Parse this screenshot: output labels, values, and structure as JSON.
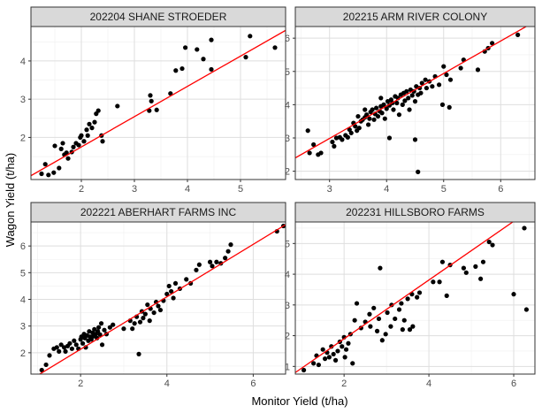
{
  "figure": {
    "xlabel": "Monitor Yield (t/ha)",
    "ylabel": "Wagon Yield (t/ha)"
  },
  "colors": {
    "panel_border": "#333333",
    "grid_major": "#dedede",
    "grid_minor": "#efefef",
    "strip_fill": "#d9d9d9",
    "point": "#000000",
    "fit_line": "#ff0000"
  },
  "chart_data": [
    {
      "type": "scatter",
      "title": "202204 SHANE STROEDER",
      "xlim": [
        1.05,
        5.85
      ],
      "ylim": [
        0.9,
        4.9
      ],
      "xticks": [
        2,
        3,
        4,
        5
      ],
      "yticks": [
        2,
        3,
        4
      ],
      "line": {
        "x": [
          1.05,
          5.85
        ],
        "y": [
          1.0,
          4.8
        ]
      },
      "points": [
        [
          1.25,
          1.05
        ],
        [
          1.32,
          1.3
        ],
        [
          1.38,
          1.02
        ],
        [
          1.48,
          1.08
        ],
        [
          1.5,
          1.78
        ],
        [
          1.58,
          1.2
        ],
        [
          1.62,
          1.7
        ],
        [
          1.65,
          1.85
        ],
        [
          1.68,
          1.55
        ],
        [
          1.72,
          1.6
        ],
        [
          1.75,
          1.45
        ],
        [
          1.82,
          1.62
        ],
        [
          1.85,
          1.75
        ],
        [
          1.9,
          1.85
        ],
        [
          1.95,
          1.8
        ],
        [
          1.98,
          2.0
        ],
        [
          2.0,
          2.05
        ],
        [
          2.05,
          1.9
        ],
        [
          2.1,
          2.2
        ],
        [
          2.12,
          2.05
        ],
        [
          2.15,
          2.35
        ],
        [
          2.2,
          2.25
        ],
        [
          2.25,
          2.4
        ],
        [
          2.28,
          2.62
        ],
        [
          2.32,
          2.7
        ],
        [
          2.38,
          2.05
        ],
        [
          2.4,
          1.9
        ],
        [
          2.68,
          2.82
        ],
        [
          3.28,
          2.7
        ],
        [
          3.3,
          3.1
        ],
        [
          3.32,
          2.95
        ],
        [
          3.42,
          2.72
        ],
        [
          3.68,
          3.15
        ],
        [
          3.78,
          3.75
        ],
        [
          3.9,
          3.8
        ],
        [
          3.96,
          4.35
        ],
        [
          4.18,
          4.3
        ],
        [
          4.3,
          4.05
        ],
        [
          4.45,
          4.55
        ],
        [
          4.45,
          3.78
        ],
        [
          5.1,
          4.1
        ],
        [
          5.18,
          4.65
        ],
        [
          5.65,
          4.35
        ]
      ]
    },
    {
      "type": "scatter",
      "title": "202215 ARM RIVER COLONY",
      "xlim": [
        2.4,
        6.6
      ],
      "ylim": [
        1.75,
        6.35
      ],
      "xticks": [
        3,
        4,
        5,
        6
      ],
      "yticks": [
        2,
        3,
        4,
        5,
        6
      ],
      "line": {
        "x": [
          2.4,
          6.6
        ],
        "y": [
          2.4,
          6.5
        ]
      },
      "points": [
        [
          2.62,
          3.22
        ],
        [
          2.65,
          2.55
        ],
        [
          2.72,
          2.8
        ],
        [
          2.8,
          2.5
        ],
        [
          2.85,
          2.55
        ],
        [
          3.05,
          2.88
        ],
        [
          3.08,
          2.75
        ],
        [
          3.12,
          3.0
        ],
        [
          3.18,
          3.02
        ],
        [
          3.22,
          2.95
        ],
        [
          3.28,
          3.08
        ],
        [
          3.32,
          3.02
        ],
        [
          3.35,
          3.25
        ],
        [
          3.38,
          3.15
        ],
        [
          3.42,
          3.45
        ],
        [
          3.45,
          3.35
        ],
        [
          3.48,
          3.22
        ],
        [
          3.5,
          3.65
        ],
        [
          3.52,
          3.3
        ],
        [
          3.55,
          3.5
        ],
        [
          3.58,
          3.55
        ],
        [
          3.62,
          3.62
        ],
        [
          3.65,
          3.7
        ],
        [
          3.68,
          3.4
        ],
        [
          3.7,
          3.58
        ],
        [
          3.72,
          3.78
        ],
        [
          3.75,
          3.85
        ],
        [
          3.78,
          3.55
        ],
        [
          3.8,
          3.72
        ],
        [
          3.82,
          3.9
        ],
        [
          3.85,
          3.65
        ],
        [
          3.88,
          3.8
        ],
        [
          3.9,
          3.95
        ],
        [
          3.92,
          3.75
        ],
        [
          3.95,
          4.0
        ],
        [
          3.97,
          3.58
        ],
        [
          4.0,
          3.88
        ],
        [
          4.02,
          4.1
        ],
        [
          4.05,
          3.98
        ],
        [
          4.08,
          4.15
        ],
        [
          4.1,
          4.05
        ],
        [
          4.12,
          3.85
        ],
        [
          4.15,
          4.25
        ],
        [
          4.18,
          4.05
        ],
        [
          4.2,
          4.2
        ],
        [
          4.22,
          3.7
        ],
        [
          4.25,
          4.3
        ],
        [
          4.28,
          4.0
        ],
        [
          4.3,
          4.35
        ],
        [
          4.32,
          4.12
        ],
        [
          4.35,
          4.4
        ],
        [
          4.38,
          4.2
        ],
        [
          4.4,
          3.85
        ],
        [
          4.42,
          4.45
        ],
        [
          4.45,
          4.28
        ],
        [
          4.48,
          4.4
        ],
        [
          4.5,
          4.1
        ],
        [
          4.52,
          4.55
        ],
        [
          4.55,
          4.3
        ],
        [
          4.58,
          4.5
        ],
        [
          4.6,
          4.35
        ],
        [
          4.62,
          4.65
        ],
        [
          4.68,
          4.75
        ],
        [
          4.7,
          4.5
        ],
        [
          4.75,
          4.7
        ],
        [
          4.8,
          4.55
        ],
        [
          4.85,
          4.85
        ],
        [
          4.92,
          4.6
        ],
        [
          4.98,
          4.0
        ],
        [
          5.0,
          5.15
        ],
        [
          5.05,
          4.9
        ],
        [
          5.1,
          3.92
        ],
        [
          5.12,
          4.75
        ],
        [
          5.3,
          5.1
        ],
        [
          5.35,
          5.35
        ],
        [
          5.6,
          5.05
        ],
        [
          5.72,
          5.6
        ],
        [
          5.78,
          5.7
        ],
        [
          5.85,
          5.85
        ],
        [
          4.05,
          3.0
        ],
        [
          4.5,
          2.95
        ],
        [
          4.55,
          1.98
        ],
        [
          6.3,
          6.1
        ],
        [
          3.62,
          3.85
        ],
        [
          3.9,
          4.2
        ]
      ]
    },
    {
      "type": "scatter",
      "title": "202221 ABERHART FARMS INC",
      "xlim": [
        0.85,
        6.75
      ],
      "ylim": [
        1.2,
        6.9
      ],
      "xticks": [
        2,
        4,
        6
      ],
      "yticks": [
        2,
        3,
        4,
        5,
        6
      ],
      "line": {
        "x": [
          0.85,
          6.75
        ],
        "y": [
          1.0,
          6.8
        ]
      },
      "points": [
        [
          1.1,
          1.35
        ],
        [
          1.2,
          1.55
        ],
        [
          1.28,
          1.9
        ],
        [
          1.38,
          2.15
        ],
        [
          1.45,
          2.2
        ],
        [
          1.5,
          2.05
        ],
        [
          1.55,
          2.3
        ],
        [
          1.62,
          2.2
        ],
        [
          1.65,
          2.05
        ],
        [
          1.7,
          2.25
        ],
        [
          1.75,
          2.35
        ],
        [
          1.8,
          2.15
        ],
        [
          1.85,
          2.45
        ],
        [
          1.9,
          2.3
        ],
        [
          1.95,
          2.15
        ],
        [
          2.0,
          2.5
        ],
        [
          2.02,
          2.6
        ],
        [
          2.05,
          2.35
        ],
        [
          2.08,
          2.7
        ],
        [
          2.1,
          2.55
        ],
        [
          2.12,
          2.2
        ],
        [
          2.15,
          2.65
        ],
        [
          2.18,
          2.45
        ],
        [
          2.2,
          2.8
        ],
        [
          2.22,
          2.6
        ],
        [
          2.25,
          2.5
        ],
        [
          2.28,
          2.75
        ],
        [
          2.3,
          2.62
        ],
        [
          2.32,
          2.88
        ],
        [
          2.35,
          2.7
        ],
        [
          2.38,
          2.55
        ],
        [
          2.4,
          2.8
        ],
        [
          2.42,
          2.95
        ],
        [
          2.45,
          2.68
        ],
        [
          2.48,
          3.1
        ],
        [
          2.5,
          2.3
        ],
        [
          2.55,
          2.85
        ],
        [
          2.6,
          2.7
        ],
        [
          2.68,
          2.95
        ],
        [
          2.75,
          3.05
        ],
        [
          3.0,
          2.9
        ],
        [
          3.15,
          3.2
        ],
        [
          3.2,
          2.9
        ],
        [
          3.25,
          3.1
        ],
        [
          3.3,
          3.35
        ],
        [
          3.35,
          1.95
        ],
        [
          3.38,
          3.15
        ],
        [
          3.42,
          3.55
        ],
        [
          3.45,
          3.3
        ],
        [
          3.5,
          3.45
        ],
        [
          3.55,
          3.8
        ],
        [
          3.6,
          3.2
        ],
        [
          3.62,
          3.65
        ],
        [
          3.7,
          3.5
        ],
        [
          3.75,
          3.9
        ],
        [
          3.8,
          3.75
        ],
        [
          3.85,
          3.6
        ],
        [
          3.92,
          3.95
        ],
        [
          4.0,
          4.2
        ],
        [
          4.05,
          4.5
        ],
        [
          4.1,
          4.3
        ],
        [
          4.15,
          4.05
        ],
        [
          4.2,
          4.6
        ],
        [
          4.3,
          4.4
        ],
        [
          4.45,
          4.75
        ],
        [
          4.55,
          4.6
        ],
        [
          4.68,
          5.1
        ],
        [
          4.75,
          5.3
        ],
        [
          5.0,
          5.4
        ],
        [
          5.05,
          5.25
        ],
        [
          5.15,
          5.4
        ],
        [
          5.25,
          5.35
        ],
        [
          5.35,
          5.55
        ],
        [
          5.42,
          5.8
        ],
        [
          5.48,
          6.05
        ],
        [
          6.55,
          6.55
        ],
        [
          6.7,
          6.75
        ]
      ]
    },
    {
      "type": "scatter",
      "title": "202231 HILLSBORO FARMS",
      "xlim": [
        0.85,
        6.5
      ],
      "ylim": [
        0.75,
        5.7
      ],
      "xticks": [
        2,
        4,
        6
      ],
      "yticks": [
        1,
        2,
        3,
        4,
        5
      ],
      "line": {
        "x": [
          0.85,
          6.5
        ],
        "y": [
          0.8,
          6.2
        ]
      },
      "points": [
        [
          1.05,
          0.88
        ],
        [
          1.28,
          1.1
        ],
        [
          1.35,
          1.35
        ],
        [
          1.4,
          1.05
        ],
        [
          1.5,
          1.55
        ],
        [
          1.55,
          1.25
        ],
        [
          1.6,
          1.45
        ],
        [
          1.65,
          1.3
        ],
        [
          1.7,
          1.65
        ],
        [
          1.75,
          1.4
        ],
        [
          1.8,
          1.2
        ],
        [
          1.85,
          1.5
        ],
        [
          1.9,
          1.8
        ],
        [
          1.95,
          1.65
        ],
        [
          2.0,
          1.95
        ],
        [
          2.02,
          1.3
        ],
        [
          2.05,
          1.55
        ],
        [
          2.1,
          1.75
        ],
        [
          2.15,
          2.05
        ],
        [
          2.2,
          1.1
        ],
        [
          2.25,
          2.5
        ],
        [
          2.3,
          3.05
        ],
        [
          2.4,
          2.25
        ],
        [
          2.5,
          2.45
        ],
        [
          2.6,
          2.7
        ],
        [
          2.62,
          2.3
        ],
        [
          2.7,
          2.9
        ],
        [
          2.78,
          2.15
        ],
        [
          2.82,
          2.55
        ],
        [
          2.85,
          4.2
        ],
        [
          2.9,
          1.85
        ],
        [
          2.98,
          2.05
        ],
        [
          3.02,
          2.75
        ],
        [
          3.1,
          2.3
        ],
        [
          3.12,
          3.0
        ],
        [
          3.2,
          2.55
        ],
        [
          3.3,
          2.85
        ],
        [
          3.35,
          3.05
        ],
        [
          3.38,
          2.2
        ],
        [
          3.42,
          2.5
        ],
        [
          3.5,
          3.2
        ],
        [
          3.55,
          2.2
        ],
        [
          3.6,
          3.35
        ],
        [
          3.62,
          2.3
        ],
        [
          3.72,
          3.25
        ],
        [
          3.78,
          3.4
        ],
        [
          4.1,
          3.75
        ],
        [
          4.25,
          3.75
        ],
        [
          4.32,
          4.4
        ],
        [
          4.5,
          4.3
        ],
        [
          4.42,
          3.3
        ],
        [
          4.82,
          4.2
        ],
        [
          4.88,
          4.05
        ],
        [
          5.1,
          4.25
        ],
        [
          5.22,
          3.85
        ],
        [
          5.28,
          4.4
        ],
        [
          5.42,
          5.05
        ],
        [
          5.5,
          4.95
        ],
        [
          6.0,
          3.35
        ],
        [
          6.25,
          5.5
        ],
        [
          6.3,
          2.85
        ]
      ]
    }
  ]
}
